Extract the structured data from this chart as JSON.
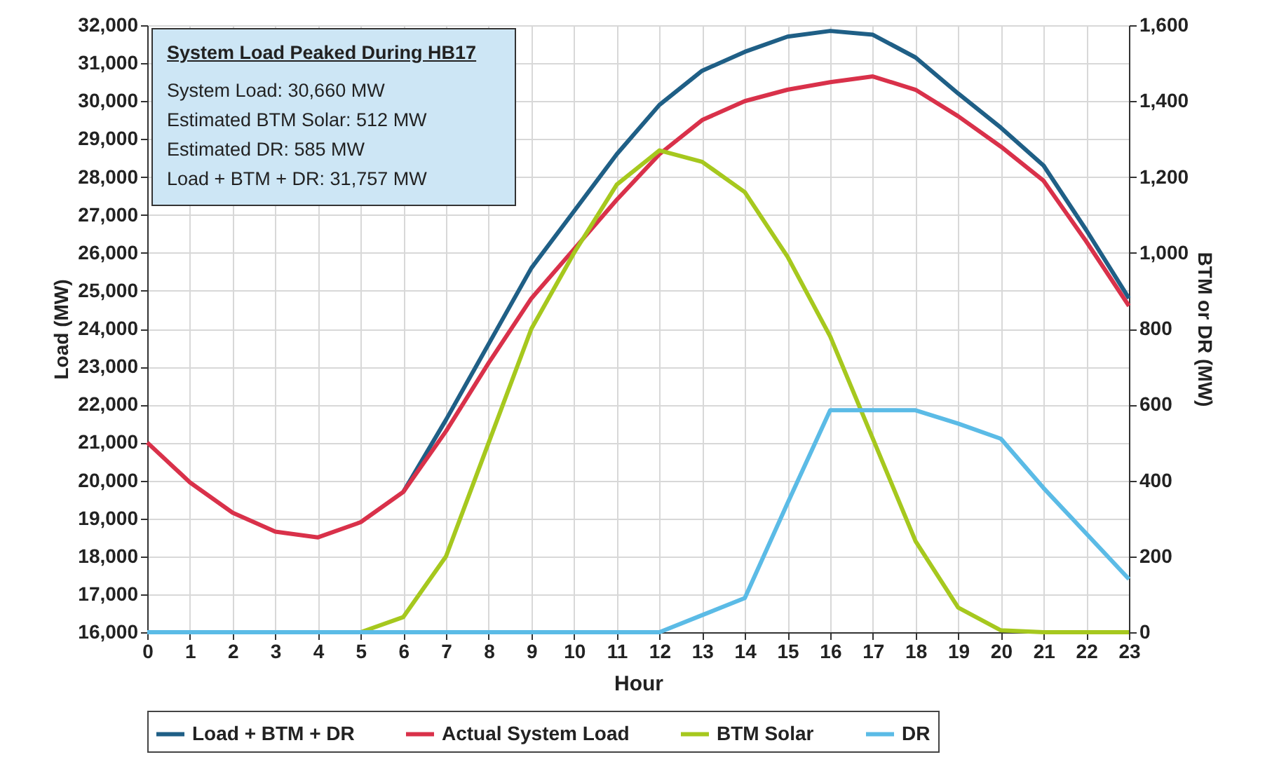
{
  "chart_data": {
    "type": "line",
    "xlabel": "Hour",
    "ylabel": "Load (MW)",
    "y2label": "BTM or DR (MW)",
    "x": [
      0,
      1,
      2,
      3,
      4,
      5,
      6,
      7,
      8,
      9,
      10,
      11,
      12,
      13,
      14,
      15,
      16,
      17,
      18,
      19,
      20,
      21,
      22,
      23
    ],
    "xlim": [
      0,
      23
    ],
    "xticks": [
      0,
      1,
      2,
      3,
      4,
      5,
      6,
      7,
      8,
      9,
      10,
      11,
      12,
      13,
      14,
      15,
      16,
      17,
      18,
      19,
      20,
      21,
      22,
      23
    ],
    "ylim": [
      16000,
      32000
    ],
    "yticks": [
      {
        "value": 16000,
        "label": "16,000"
      },
      {
        "value": 17000,
        "label": "17,000"
      },
      {
        "value": 18000,
        "label": "18,000"
      },
      {
        "value": 19000,
        "label": "19,000"
      },
      {
        "value": 20000,
        "label": "20,000"
      },
      {
        "value": 21000,
        "label": "21,000"
      },
      {
        "value": 22000,
        "label": "22,000"
      },
      {
        "value": 23000,
        "label": "23,000"
      },
      {
        "value": 24000,
        "label": "24,000"
      },
      {
        "value": 25000,
        "label": "25,000"
      },
      {
        "value": 26000,
        "label": "26,000"
      },
      {
        "value": 27000,
        "label": "27,000"
      },
      {
        "value": 28000,
        "label": "28,000"
      },
      {
        "value": 29000,
        "label": "29,000"
      },
      {
        "value": 30000,
        "label": "30,000"
      },
      {
        "value": 31000,
        "label": "31,000"
      },
      {
        "value": 32000,
        "label": "32,000"
      }
    ],
    "y2lim": [
      0,
      1600
    ],
    "y2ticks": [
      0,
      200,
      400,
      600,
      800,
      {
        "value": 1000,
        "label": "1,000"
      },
      {
        "value": 1200,
        "label": "1,200"
      },
      {
        "value": 1400,
        "label": "1,400"
      },
      {
        "value": 1600,
        "label": "1,600"
      }
    ],
    "grid": true,
    "legend": "bottom",
    "line_style": "solid",
    "marker": "none",
    "annotations": [
      "System Load Peaked During HB17",
      "System Load: 30,660  MW",
      "Estimated BTM Solar: 512  MW",
      "Estimated DR: 585  MW",
      "Load + BTM + DR: 31,757  MW"
    ],
    "series": [
      {
        "name": "Load + BTM + DR",
        "color": "#1f5f86",
        "values": [
          null,
          null,
          null,
          null,
          null,
          null,
          19700,
          21600,
          23600,
          25600,
          27100,
          28600,
          29900,
          30800,
          31300,
          31700,
          31850,
          31750,
          31150,
          30200,
          29300,
          28300,
          26600,
          24800
        ]
      },
      {
        "name": "Actual System Load",
        "color": "#d9314a",
        "values": [
          21000,
          19950,
          19150,
          18650,
          18500,
          18900,
          19700,
          21300,
          23100,
          24800,
          26100,
          27400,
          28600,
          29500,
          30000,
          30300,
          30500,
          30650,
          30300,
          29600,
          28800,
          27900,
          26300,
          24600
        ]
      },
      {
        "name": "BTM Solar",
        "color": "#a6c81e",
        "axis": "y2",
        "values": [
          null,
          null,
          null,
          null,
          null,
          0,
          40,
          200,
          500,
          800,
          1000,
          1180,
          1270,
          1240,
          1160,
          990,
          780,
          510,
          240,
          65,
          5,
          0,
          0,
          0
        ]
      },
      {
        "name": "DR",
        "color": "#5bbbe6",
        "axis": "y2",
        "values": [
          0,
          0,
          0,
          0,
          0,
          0,
          0,
          0,
          0,
          0,
          0,
          0,
          0,
          45,
          90,
          340,
          585,
          585,
          585,
          550,
          510,
          380,
          260,
          140
        ]
      }
    ]
  }
}
